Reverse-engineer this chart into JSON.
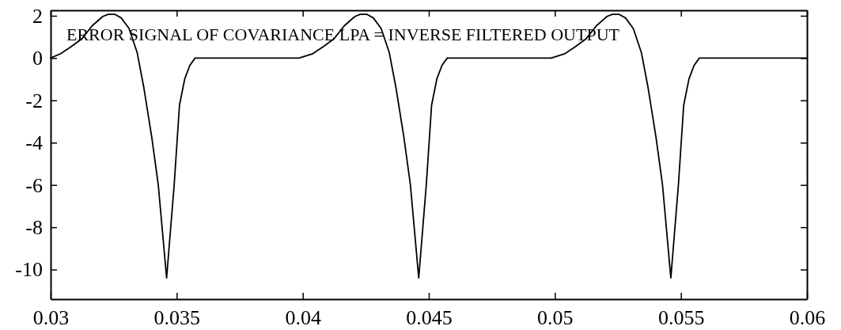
{
  "chart_data": {
    "type": "line",
    "annotations": [
      "ERROR SIGNAL OF COVARIANCE LPA = INVERSE FILTERED OUTPUT"
    ],
    "xlim": [
      0.03,
      0.06
    ],
    "xticks": [
      0.03,
      0.035,
      0.04,
      0.045,
      0.05,
      0.055,
      0.06
    ],
    "ylim": [
      -11.4,
      2.26
    ],
    "yticks": [
      -10,
      -8,
      -6,
      -4,
      -2,
      0,
      2
    ],
    "grid": false,
    "marker": "none",
    "line_style": "solid",
    "series": [
      {
        "color": "#000000",
        "x": [
          0.03,
          0.0304,
          0.0308,
          0.03123,
          0.03165,
          0.03207,
          0.03228,
          0.03254,
          0.0328,
          0.03311,
          0.03343,
          0.03369,
          0.03401,
          0.03427,
          0.0346,
          0.0349,
          0.03511,
          0.03532,
          0.03552,
          0.03573,
          0.03985,
          0.0404,
          0.0408,
          0.04123,
          0.04165,
          0.04207,
          0.04228,
          0.04254,
          0.0428,
          0.04311,
          0.04343,
          0.04369,
          0.04401,
          0.04427,
          0.0446,
          0.0449,
          0.04511,
          0.04532,
          0.04552,
          0.04573,
          0.04985,
          0.0504,
          0.0508,
          0.05123,
          0.05165,
          0.05207,
          0.05228,
          0.05254,
          0.0528,
          0.05311,
          0.05343,
          0.05369,
          0.05401,
          0.05427,
          0.0546,
          0.0549,
          0.05511,
          0.05532,
          0.05552,
          0.05573,
          0.06
        ],
        "values": [
          0,
          0.21,
          0.53,
          0.9,
          1.53,
          1.97,
          2.07,
          2.07,
          1.9,
          1.4,
          0.27,
          -1.35,
          -3.73,
          -6,
          -10.4,
          -6,
          -2.23,
          -0.98,
          -0.35,
          0,
          0,
          0.21,
          0.53,
          0.9,
          1.53,
          1.97,
          2.07,
          2.07,
          1.9,
          1.4,
          0.27,
          -1.35,
          -3.73,
          -6,
          -10.4,
          -6,
          -2.23,
          -0.98,
          -0.35,
          0,
          0,
          0.21,
          0.53,
          0.9,
          1.53,
          1.97,
          2.07,
          2.07,
          1.9,
          1.4,
          0.27,
          -1.35,
          -3.73,
          -6,
          -10.4,
          -6,
          -2.23,
          -0.98,
          -0.35,
          0,
          0
        ]
      }
    ]
  }
}
